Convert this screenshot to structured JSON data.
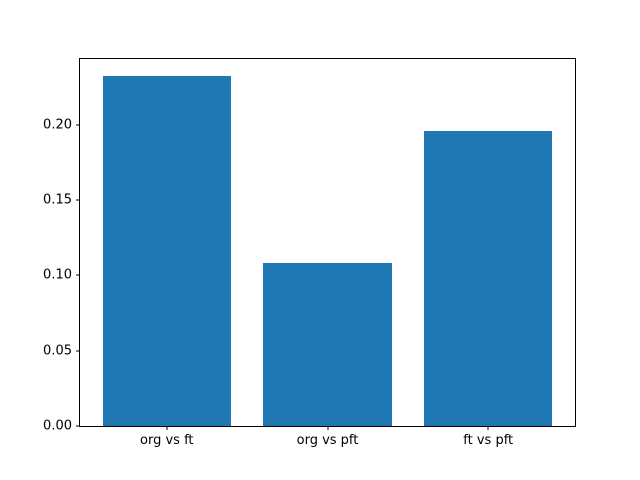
{
  "figure": {
    "background": "#ffffff",
    "frame_color": "#000000",
    "text_color": "#000000"
  },
  "chart_data": {
    "type": "bar",
    "title": "",
    "xlabel": "",
    "ylabel": "",
    "categories": [
      "org vs ft",
      "org vs pft",
      "ft vs pft"
    ],
    "values": [
      0.232,
      0.108,
      0.196
    ],
    "bar_color": "#1f77b4",
    "bar_width": 0.8,
    "xlim": [
      -0.54,
      2.54
    ],
    "ylim": [
      0,
      0.2436
    ],
    "yticks": [
      0.0,
      0.05,
      0.1,
      0.15,
      0.2
    ],
    "ytick_labels": [
      "0.00",
      "0.05",
      "0.10",
      "0.15",
      "0.20"
    ],
    "grid": false,
    "legend": null
  }
}
